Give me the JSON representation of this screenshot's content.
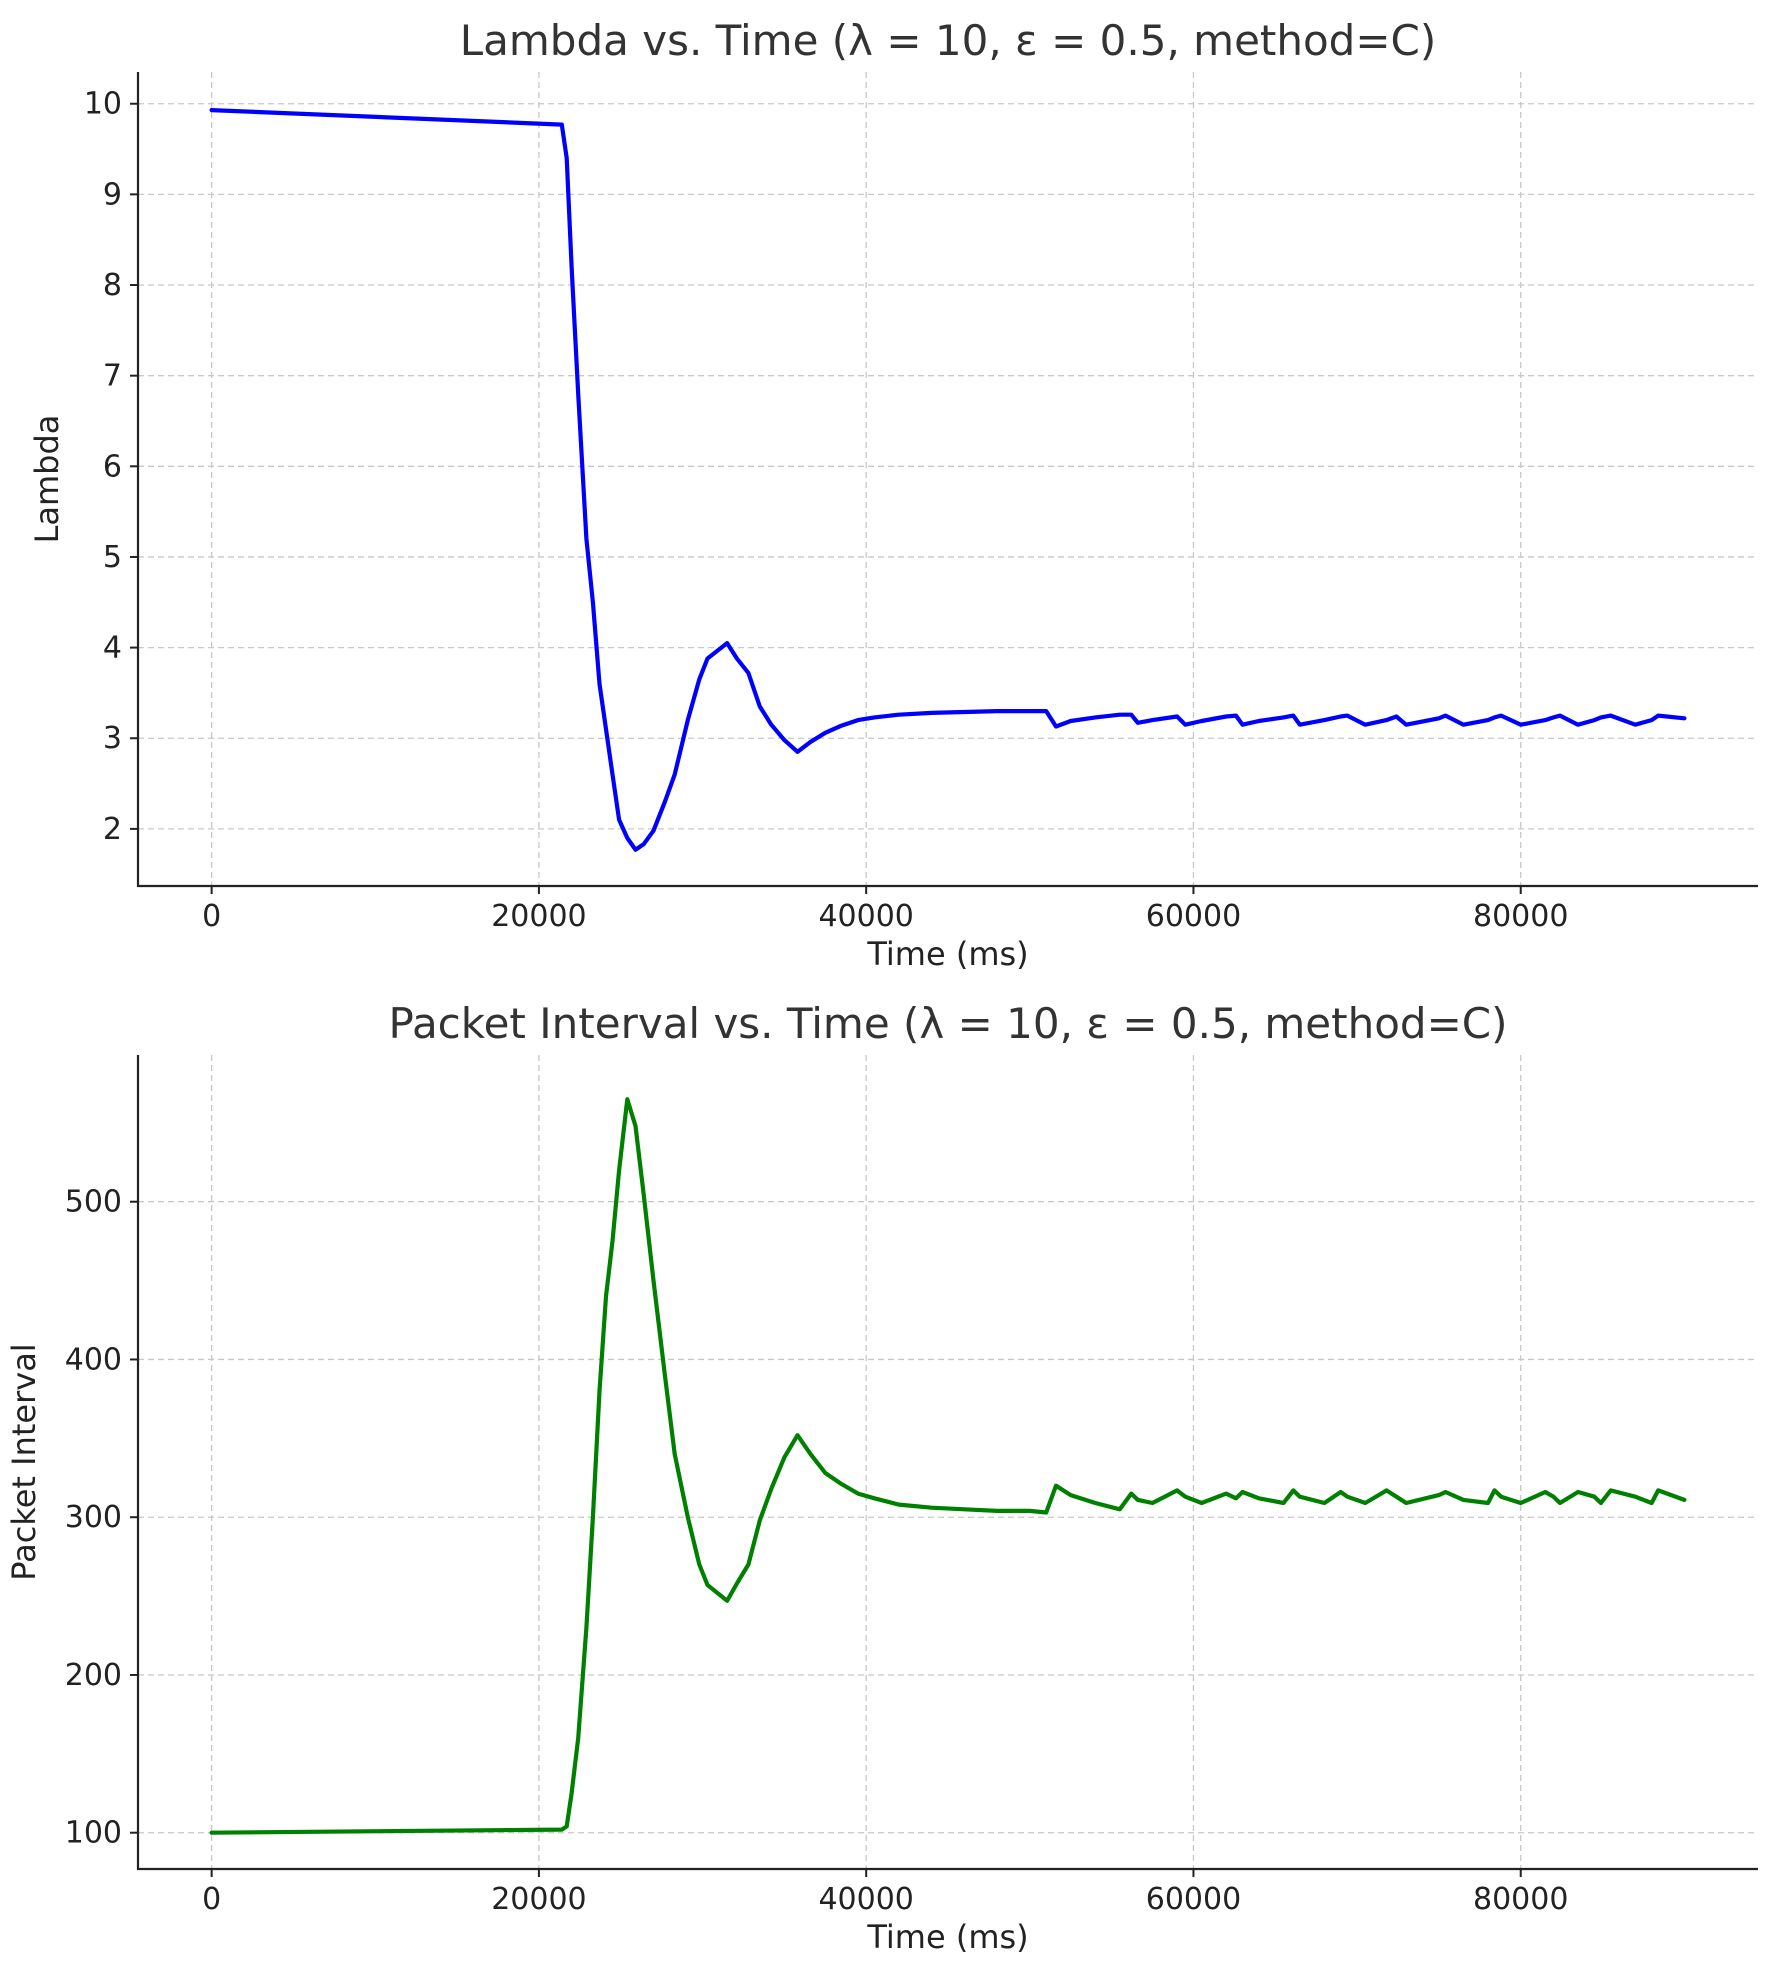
{
  "chart_data": [
    {
      "type": "line",
      "title": "Lambda vs. Time (λ = 10, ε = 0.5, method=C)",
      "xlabel": "Time (ms)",
      "ylabel": "Lambda",
      "xlim": [
        -4500,
        94500
      ],
      "ylim": [
        1.37,
        10.35
      ],
      "xticks": [
        0,
        20000,
        40000,
        60000,
        80000
      ],
      "yticks": [
        2,
        3,
        4,
        5,
        6,
        7,
        8,
        9,
        10
      ],
      "grid": true,
      "color": "#0000ff",
      "series": [
        {
          "x": [
            0,
            21400,
            21700,
            22000,
            22400,
            22900,
            23300,
            23700,
            24100,
            24500,
            24900,
            25400,
            25900,
            26400,
            27000,
            27700,
            28300,
            29100,
            29800,
            30300,
            31500,
            32100,
            32800,
            33500,
            34200,
            35000,
            35800,
            36600,
            37500,
            38500,
            39500,
            40500,
            42000,
            44000,
            46000,
            48000,
            50000,
            51000,
            51600,
            52500,
            54000,
            55500,
            56200,
            56600,
            57500,
            59000,
            59500,
            60500,
            62000,
            62600,
            63000,
            64000,
            65500,
            66100,
            66500,
            68000,
            69000,
            69400,
            70500,
            71800,
            72400,
            73000,
            75000,
            75400,
            76500,
            78000,
            78400,
            78800,
            80000,
            81500,
            82000,
            82400,
            83500,
            84500,
            84900,
            85500,
            87000,
            88000,
            88400,
            90000
          ],
          "y": [
            9.93,
            9.77,
            9.4,
            8.2,
            6.8,
            5.2,
            4.5,
            3.6,
            3.1,
            2.6,
            2.1,
            1.9,
            1.77,
            1.83,
            1.98,
            2.3,
            2.6,
            3.2,
            3.65,
            3.88,
            4.05,
            3.88,
            3.72,
            3.35,
            3.15,
            2.98,
            2.85,
            2.96,
            3.06,
            3.14,
            3.2,
            3.23,
            3.26,
            3.28,
            3.29,
            3.3,
            3.3,
            3.3,
            3.13,
            3.19,
            3.23,
            3.26,
            3.26,
            3.17,
            3.2,
            3.24,
            3.15,
            3.19,
            3.24,
            3.25,
            3.15,
            3.19,
            3.23,
            3.25,
            3.15,
            3.2,
            3.24,
            3.25,
            3.15,
            3.2,
            3.24,
            3.15,
            3.22,
            3.25,
            3.15,
            3.2,
            3.23,
            3.25,
            3.15,
            3.2,
            3.23,
            3.25,
            3.15,
            3.2,
            3.23,
            3.25,
            3.15,
            3.2,
            3.25,
            3.22
          ]
        }
      ]
    },
    {
      "type": "line",
      "title": "Packet Interval vs. Time (λ = 10, ε = 0.5, method=C)",
      "xlabel": "Time (ms)",
      "ylabel": "Packet Interval",
      "xlim": [
        -4500,
        94500
      ],
      "ylim": [
        77,
        593
      ],
      "xticks": [
        0,
        20000,
        40000,
        60000,
        80000
      ],
      "yticks": [
        100,
        200,
        300,
        400,
        500
      ],
      "grid": true,
      "color": "#008000",
      "series": [
        {
          "x": [
            0,
            21400,
            21700,
            22000,
            22400,
            22900,
            23300,
            23700,
            24100,
            24500,
            24900,
            25400,
            25900,
            26400,
            27000,
            27700,
            28300,
            29100,
            29800,
            30300,
            31500,
            32100,
            32800,
            33500,
            34200,
            35000,
            35800,
            36600,
            37500,
            38500,
            39500,
            40500,
            42000,
            44000,
            46000,
            48000,
            50000,
            51000,
            51600,
            52500,
            54000,
            55500,
            56200,
            56600,
            57500,
            59000,
            59500,
            60500,
            62000,
            62600,
            63000,
            64000,
            65500,
            66100,
            66500,
            68000,
            69000,
            69400,
            70500,
            71800,
            72400,
            73000,
            75000,
            75400,
            76500,
            78000,
            78400,
            78800,
            80000,
            81500,
            82000,
            82400,
            83500,
            84500,
            84900,
            85500,
            87000,
            88000,
            88400,
            90000
          ],
          "y": [
            100,
            102,
            104,
            125,
            160,
            230,
            300,
            380,
            440,
            475,
            520,
            565,
            548,
            505,
            450,
            390,
            340,
            300,
            270,
            257,
            247,
            258,
            270,
            298,
            318,
            338,
            352,
            340,
            328,
            321,
            315,
            312,
            308,
            306,
            305,
            304,
            304,
            303,
            320,
            314,
            309,
            305,
            315,
            311,
            309,
            317,
            313,
            309,
            315,
            312,
            316,
            312,
            309,
            317,
            313,
            309,
            316,
            313,
            309,
            317,
            313,
            309,
            314,
            316,
            311,
            309,
            317,
            313,
            309,
            316,
            313,
            309,
            316,
            313,
            309,
            317,
            313,
            309,
            317,
            311
          ]
        }
      ]
    }
  ]
}
